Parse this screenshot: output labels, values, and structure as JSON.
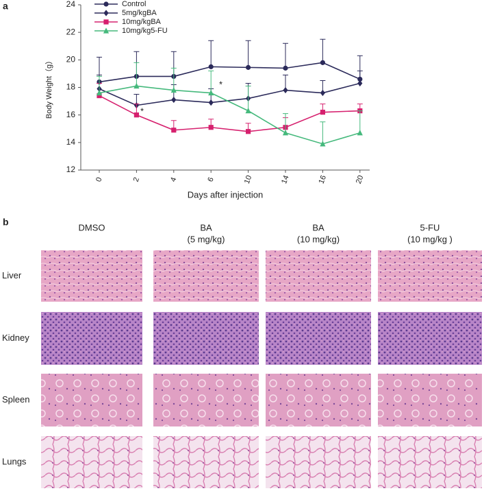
{
  "chart_data": {
    "type": "line",
    "panel_label": "a",
    "ylabel": "Body Weight（g）",
    "xlabel": "Days after injection",
    "categories": [
      "0",
      "2",
      "4",
      "6",
      "10",
      "14",
      "16",
      "20"
    ],
    "ylim": [
      12,
      24
    ],
    "yticks": [
      12,
      14,
      16,
      18,
      20,
      22,
      24
    ],
    "series": [
      {
        "name": "Control",
        "color": "#2b2a5a",
        "marker": "circle",
        "values": [
          18.4,
          18.8,
          18.8,
          19.5,
          19.45,
          19.4,
          19.8,
          18.6
        ],
        "errors": [
          1.8,
          1.8,
          1.8,
          1.9,
          1.95,
          1.8,
          1.7,
          1.7
        ]
      },
      {
        "name": "5mg/kgBA",
        "color": "#2b2a5a",
        "marker": "diamond",
        "values": [
          17.9,
          16.7,
          17.1,
          16.9,
          17.2,
          17.8,
          17.6,
          18.3
        ],
        "errors": [
          1.0,
          0.8,
          1.1,
          1.0,
          1.1,
          1.1,
          0.9,
          0.9
        ]
      },
      {
        "name": "10mg/kgBA",
        "color": "#d6206e",
        "marker": "square",
        "values": [
          17.4,
          16.0,
          14.9,
          15.1,
          14.8,
          15.1,
          16.2,
          16.3
        ],
        "errors": [
          0.9,
          0.8,
          0.7,
          0.6,
          0.6,
          0.7,
          0.6,
          0.5
        ]
      },
      {
        "name": "10mg/kg5-FU",
        "color": "#45b97c",
        "marker": "triangle",
        "values": [
          17.6,
          18.1,
          17.8,
          17.6,
          16.3,
          14.7,
          13.9,
          14.7
        ],
        "errors": [
          1.2,
          1.7,
          1.6,
          1.6,
          1.8,
          1.4,
          1.6,
          1.6
        ]
      }
    ],
    "annotations": [
      {
        "text": "*",
        "color": "#d6206e"
      },
      {
        "text": "*",
        "color": "#45b97c"
      }
    ]
  },
  "figure_b": {
    "panel_label": "b",
    "columns": [
      [
        "DMSO"
      ],
      [
        "BA",
        "(5 mg/kg)"
      ],
      [
        "BA",
        "(10 mg/kg)"
      ],
      [
        "5-FU",
        "(10 mg/kg )"
      ]
    ],
    "rows": [
      "Liver",
      "Kidney",
      "Spleen",
      "Lungs"
    ]
  }
}
